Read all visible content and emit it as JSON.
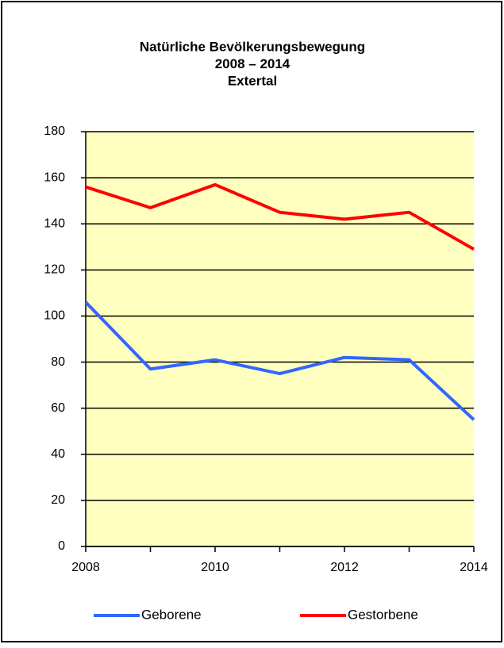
{
  "chart_data": {
    "type": "line",
    "title": [
      "Natürliche Bevölkerungsbewegung",
      "2008 – 2014",
      "Extertal"
    ],
    "x": [
      2008,
      2009,
      2010,
      2011,
      2012,
      2013,
      2014
    ],
    "series": [
      {
        "name": "Geborene",
        "color": "#3366ff",
        "values": [
          106,
          77,
          81,
          75,
          82,
          81,
          55
        ]
      },
      {
        "name": "Gestorbene",
        "color": "#ff0000",
        "values": [
          156,
          147,
          157,
          145,
          142,
          145,
          129
        ]
      }
    ],
    "xlim": [
      2008,
      2014
    ],
    "xticks": [
      2008,
      2010,
      2012,
      2014
    ],
    "ylim": [
      0,
      180
    ],
    "yticks": [
      0,
      20,
      40,
      60,
      80,
      100,
      120,
      140,
      160,
      180
    ],
    "grid": true,
    "legend": "bottom",
    "plot_background": "#ffffc0"
  }
}
